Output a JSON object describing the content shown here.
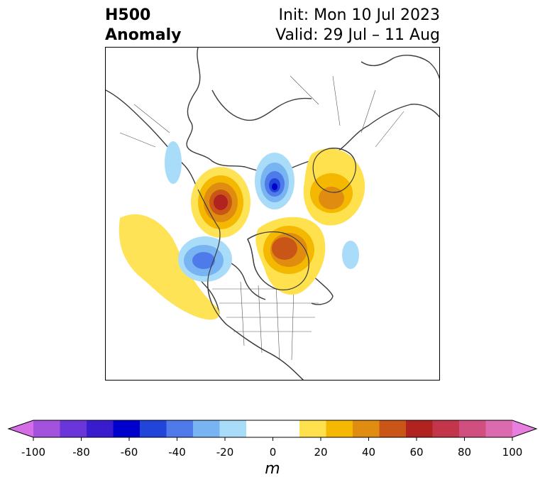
{
  "title": {
    "left_line1": "H500",
    "left_line2": "Anomaly",
    "right_line1": "Init: Mon 10 Jul 2023",
    "right_line2": "Valid: 29 Jul – 11 Aug"
  },
  "colorbar": {
    "units": "m",
    "min": -100,
    "max": 100,
    "step": 10,
    "extend": "both",
    "tick_labels": [
      "-100",
      "-80",
      "-60",
      "-40",
      "-20",
      "0",
      "20",
      "40",
      "60",
      "80",
      "100"
    ],
    "colors": [
      "#d56de6",
      "#a352dd",
      "#6a36d9",
      "#3a1ccf",
      "#0000cc",
      "#2145d8",
      "#4e7aea",
      "#78b3f2",
      "#a9dcf9",
      "#ffffff",
      "#ffffff",
      "#ffe14d",
      "#f4b800",
      "#e08c10",
      "#c95516",
      "#b0231f",
      "#c2354a",
      "#d04f7f",
      "#dc6aae",
      "#e77ee0"
    ]
  },
  "map": {
    "region": "Northern Hemisphere polar view",
    "anomaly_features": [
      {
        "sign": "positive",
        "level": 60
      },
      {
        "sign": "positive",
        "level": 50
      },
      {
        "sign": "positive",
        "level": 40
      },
      {
        "sign": "negative",
        "level": -60
      },
      {
        "sign": "negative",
        "level": -40
      }
    ]
  }
}
